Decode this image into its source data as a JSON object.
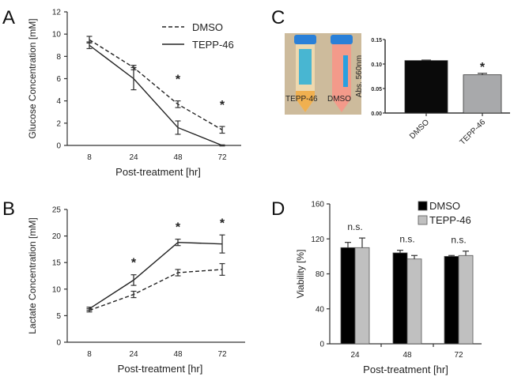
{
  "panels": {
    "a": "A",
    "b": "B",
    "c": "C",
    "d": "D"
  },
  "chart_data": [
    {
      "type": "line",
      "panel": "A",
      "xlabel": "Post-treatment [hr]",
      "ylabel": "Glucose Concentration [mM]",
      "categories": [
        "8",
        "24",
        "48",
        "72"
      ],
      "ylim": [
        0,
        12
      ],
      "yticks": [
        "0",
        "2",
        "4",
        "6",
        "8",
        "10",
        "12"
      ],
      "legend_position": "top-right",
      "series": [
        {
          "name": "DMSO",
          "style": "dashed",
          "values": [
            9.5,
            7.0,
            3.7,
            1.4
          ],
          "errors": [
            0.3,
            0.2,
            0.3,
            0.3
          ]
        },
        {
          "name": "TEPP-46",
          "style": "solid",
          "values": [
            9.0,
            6.0,
            1.6,
            0.0
          ],
          "errors": [
            0.3,
            1.0,
            0.6,
            0.05
          ]
        }
      ],
      "significance": [
        {
          "category": "48",
          "mark": "*"
        },
        {
          "category": "72",
          "mark": "*"
        }
      ]
    },
    {
      "type": "line",
      "panel": "B",
      "xlabel": "Post-treatment [hr]",
      "ylabel": "Lactate Concentration [mM]",
      "categories": [
        "8",
        "24",
        "48",
        "72"
      ],
      "ylim": [
        0,
        25
      ],
      "yticks": [
        "0",
        "5",
        "10",
        "15",
        "20",
        "25"
      ],
      "series": [
        {
          "name": "DMSO",
          "style": "dashed",
          "values": [
            6.0,
            9.0,
            13.1,
            13.7
          ],
          "errors": [
            0.3,
            0.6,
            0.6,
            1.1
          ]
        },
        {
          "name": "TEPP-46",
          "style": "solid",
          "values": [
            6.3,
            11.7,
            18.8,
            18.5
          ],
          "errors": [
            0.3,
            1.0,
            0.6,
            1.7
          ]
        }
      ],
      "significance": [
        {
          "category": "24",
          "mark": "*"
        },
        {
          "category": "48",
          "mark": "*"
        },
        {
          "category": "72",
          "mark": "*"
        }
      ]
    },
    {
      "type": "bar",
      "panel": "C",
      "ylabel": "Abs. 560nm",
      "categories": [
        "DMSO",
        "TEPP-46"
      ],
      "values": [
        0.107,
        0.078
      ],
      "errors": [
        0.001,
        0.003
      ],
      "colors": [
        "#0a0a0a",
        "#a8a9ab"
      ],
      "ylim": [
        0,
        0.15
      ],
      "yticks": [
        "0.00",
        "0.05",
        "0.10",
        "0.15"
      ],
      "significance": [
        {
          "category": "TEPP-46",
          "mark": "*"
        }
      ],
      "photo_labels": [
        "TEPP-46",
        "DMSO"
      ]
    },
    {
      "type": "bar",
      "panel": "D",
      "xlabel": "Post-treatment [hr]",
      "ylabel": "Viability [%]",
      "categories": [
        "24",
        "48",
        "72"
      ],
      "ylim": [
        0,
        160
      ],
      "yticks": [
        "0",
        "40",
        "80",
        "120",
        "160"
      ],
      "legend_position": "top-right",
      "series": [
        {
          "name": "DMSO",
          "color": "#000000",
          "values": [
            110,
            104,
            100
          ],
          "errors": [
            6,
            3,
            1
          ]
        },
        {
          "name": "TEPP-46",
          "color": "#c0c0c0",
          "values": [
            110,
            97,
            101
          ],
          "errors": [
            11,
            4,
            5
          ]
        }
      ],
      "significance": [
        {
          "category": "24",
          "mark": "n.s."
        },
        {
          "category": "48",
          "mark": "n.s."
        },
        {
          "category": "72",
          "mark": "n.s."
        }
      ]
    }
  ]
}
